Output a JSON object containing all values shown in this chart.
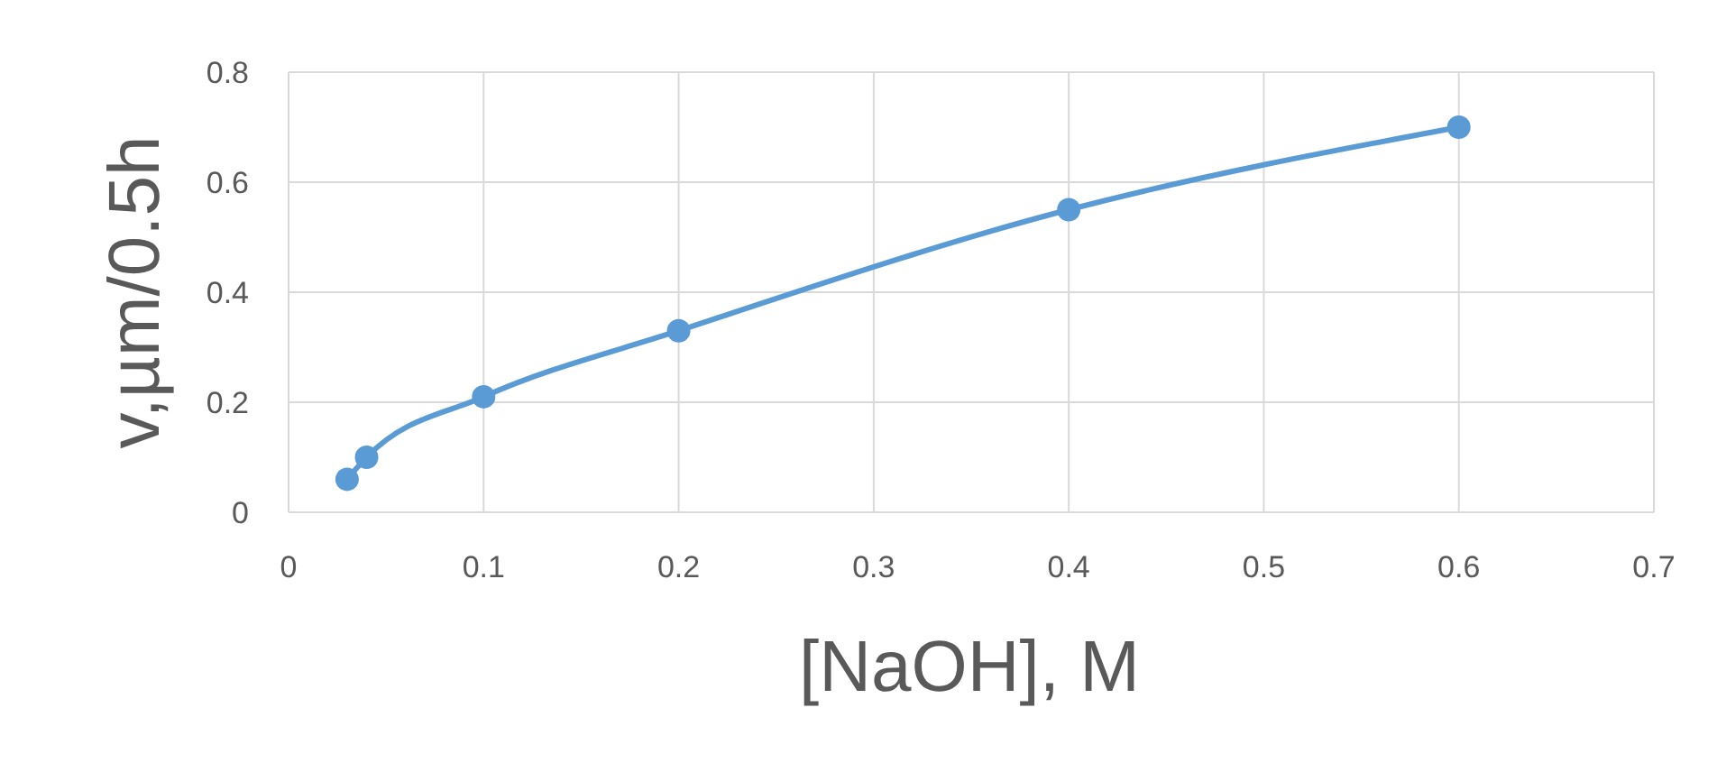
{
  "chart_data": {
    "type": "line",
    "xlabel": "[NaOH], M",
    "ylabel": "v,µm/0.5h",
    "series": [
      {
        "color": "#5b9bd5",
        "x": [
          0.03,
          0.04,
          0.1,
          0.2,
          0.4,
          0.6
        ],
        "values": [
          0.06,
          0.1,
          0.21,
          0.33,
          0.55,
          0.7
        ]
      }
    ],
    "xlim": [
      0,
      0.7
    ],
    "xticks": [
      0,
      0.1,
      0.2,
      0.3,
      0.4,
      0.5,
      0.6,
      0.7
    ],
    "ylim": [
      0,
      0.8
    ],
    "yticks": [
      0,
      0.2,
      0.4,
      0.6,
      0.8
    ],
    "grid": true,
    "marker": "circle",
    "line_style": "solid"
  }
}
